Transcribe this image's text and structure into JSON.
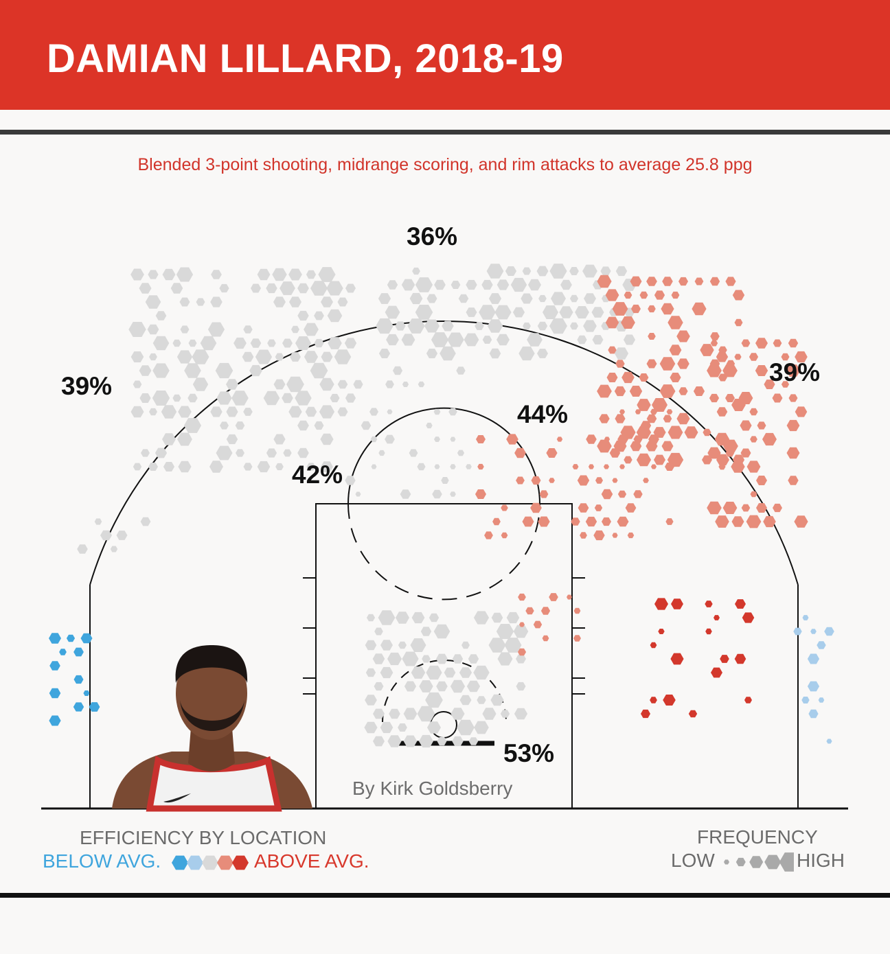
{
  "header": {
    "title": "DAMIAN LILLARD, 2018-19",
    "subtitle": "Blended 3-point shooting, midrange scoring, and rim attacks to average 25.8 ppg"
  },
  "byline": "By Kirk Goldsberry",
  "colors": {
    "header": "#dc3427",
    "below_avg": "#3fa5dd",
    "below_avg_light": "#a8cdeb",
    "average": "#d9d9d9",
    "above_avg_light": "#e78c7a",
    "above_avg": "#d3382c",
    "frequency_legend": "#a9a9a9"
  },
  "legend": {
    "efficiency_title": "EFFICIENCY BY LOCATION",
    "below_label": "BELOW AVG.",
    "above_label": "ABOVE AVG.",
    "frequency_title": "FREQUENCY",
    "low_label": "LOW",
    "high_label": "HIGH"
  },
  "chart_data": {
    "type": "hexbin shot chart",
    "zones": [
      {
        "zone": "left corner/wing 3",
        "fg_pct": "39%"
      },
      {
        "zone": "top of key 3",
        "fg_pct": "36%"
      },
      {
        "zone": "right wing 3",
        "fg_pct": "39%"
      },
      {
        "zone": "left midrange",
        "fg_pct": "42%"
      },
      {
        "zone": "right midrange",
        "fg_pct": "44%"
      },
      {
        "zone": "restricted area",
        "fg_pct": "53%"
      }
    ],
    "efficiency_scale": [
      "below",
      "below_light",
      "average",
      "above_light",
      "above"
    ],
    "frequency_scale": [
      "low",
      "high"
    ]
  }
}
